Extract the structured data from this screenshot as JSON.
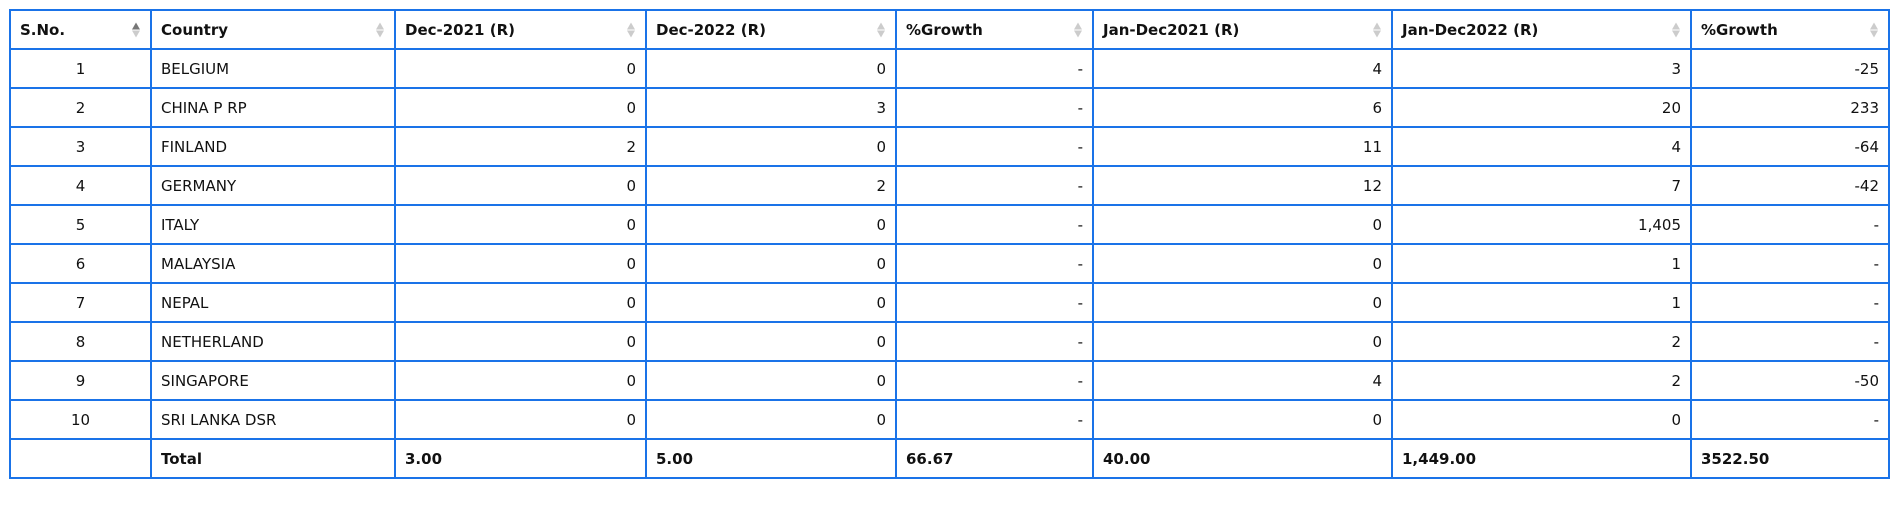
{
  "table": {
    "headers": [
      "S.No.",
      "Country",
      "Dec-2021 (R)",
      "Dec-2022 (R)",
      "%Growth",
      "Jan-Dec2021 (R)",
      "Jan-Dec2022 (R)",
      "%Growth"
    ],
    "sorted_column": "S.No.",
    "sort_direction": "ascending",
    "rows": [
      [
        "1",
        "BELGIUM",
        "0",
        "0",
        "-",
        "4",
        "3",
        "-25"
      ],
      [
        "2",
        "CHINA P RP",
        "0",
        "3",
        "-",
        "6",
        "20",
        "233"
      ],
      [
        "3",
        "FINLAND",
        "2",
        "0",
        "-",
        "11",
        "4",
        "-64"
      ],
      [
        "4",
        "GERMANY",
        "0",
        "2",
        "-",
        "12",
        "7",
        "-42"
      ],
      [
        "5",
        "ITALY",
        "0",
        "0",
        "-",
        "0",
        "1,405",
        "-"
      ],
      [
        "6",
        "MALAYSIA",
        "0",
        "0",
        "-",
        "0",
        "1",
        "-"
      ],
      [
        "7",
        "NEPAL",
        "0",
        "0",
        "-",
        "0",
        "1",
        "-"
      ],
      [
        "8",
        "NETHERLAND",
        "0",
        "0",
        "-",
        "0",
        "2",
        "-"
      ],
      [
        "9",
        "SINGAPORE",
        "0",
        "0",
        "-",
        "4",
        "2",
        "-50"
      ],
      [
        "10",
        "SRI LANKA DSR",
        "0",
        "0",
        "-",
        "0",
        "0",
        "-"
      ]
    ],
    "total": [
      "",
      "Total",
      "3.00",
      "5.00",
      "66.67",
      "40.00",
      "1,449.00",
      "3522.50"
    ],
    "border_color": "#1a73e8"
  }
}
